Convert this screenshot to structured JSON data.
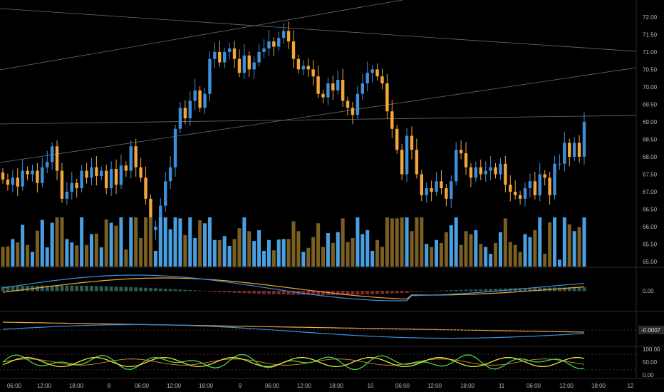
{
  "colors": {
    "background": "#000000",
    "up": "#3d8fdc",
    "down": "#f2a73b",
    "vol_up": "#4a9fe0",
    "vol_down": "#7a5e22",
    "trendline": "#6b6b6b",
    "macd_line": "#3d8fdc",
    "signal_line": "#f2a73b",
    "hist_pos": "#2f5a52",
    "hist_neg": "#7a2a2a",
    "stoch_k": "#49d24a",
    "stoch_d": "#e8e23a",
    "rsi": "#e8a03a",
    "axis_text": "#b8b8b8"
  },
  "chart_data": [
    {
      "type": "candlestick",
      "title": "",
      "x_ticks": [
        "06:00",
        "12:00",
        "18:00",
        "8",
        "06:00",
        "12:00",
        "18:00",
        "9",
        "06:00",
        "12:00",
        "18:00",
        "10",
        "06:00",
        "12:00",
        "18:00",
        "11",
        "06:00",
        "12:00",
        "18:00",
        "12"
      ],
      "y_ticks": [
        "72.00",
        "71.50",
        "71.00",
        "70.50",
        "70.00",
        "69.50",
        "69.00",
        "68.50",
        "68.00",
        "67.50",
        "67.00",
        "66.50",
        "66.00",
        "65.50",
        "65.00"
      ],
      "ylim": [
        64.9,
        72.2
      ],
      "closes": [
        67.35,
        67.2,
        67.4,
        67.15,
        67.6,
        67.5,
        67.6,
        67.25,
        67.7,
        67.85,
        68.3,
        67.6,
        66.8,
        67.0,
        67.25,
        67.1,
        67.6,
        67.4,
        67.7,
        67.45,
        67.6,
        67.1,
        67.65,
        67.2,
        67.75,
        67.6,
        68.3,
        67.7,
        67.4,
        66.8,
        65.9,
        66.0,
        66.6,
        67.3,
        67.7,
        68.8,
        69.4,
        69.1,
        69.6,
        69.9,
        69.4,
        69.8,
        70.8,
        71.0,
        70.7,
        71.0,
        71.1,
        70.8,
        70.4,
        70.9,
        70.5,
        70.7,
        71.0,
        71.1,
        71.3,
        71.15,
        71.4,
        71.6,
        71.3,
        70.8,
        70.5,
        70.6,
        70.5,
        70.3,
        69.8,
        69.7,
        70.1,
        69.9,
        70.2,
        69.6,
        69.4,
        69.2,
        69.8,
        70.1,
        70.4,
        70.5,
        70.3,
        70.1,
        69.3,
        68.8,
        68.2,
        67.5,
        68.6,
        68.2,
        67.5,
        66.9,
        67.1,
        67.0,
        67.3,
        67.1,
        66.8,
        67.3,
        68.2,
        68.1,
        67.7,
        67.4,
        67.7,
        67.5,
        67.6,
        67.7,
        67.5,
        67.8,
        67.2,
        67.0,
        66.9,
        66.8,
        67.1,
        67.3,
        66.9,
        67.5,
        67.4,
        66.9,
        67.8,
        67.8,
        68.4,
        68.0,
        68.4,
        68.0,
        69.0
      ],
      "volume_ref_max": 1.0
    },
    {
      "type": "line",
      "title": "",
      "series": [
        {
          "values": []
        },
        {
          "values": []
        }
      ],
      "y_ticks": [
        "0.00"
      ]
    },
    {
      "type": "line",
      "title": "",
      "series": [
        {
          "values": []
        },
        {
          "values": []
        }
      ],
      "badge": "-0.0007"
    },
    {
      "type": "line",
      "title": "",
      "series": [
        {
          "values": []
        },
        {
          "values": []
        },
        {
          "values": []
        }
      ],
      "y_ticks": [
        "100.00",
        "50.00",
        "0.00"
      ]
    }
  ]
}
